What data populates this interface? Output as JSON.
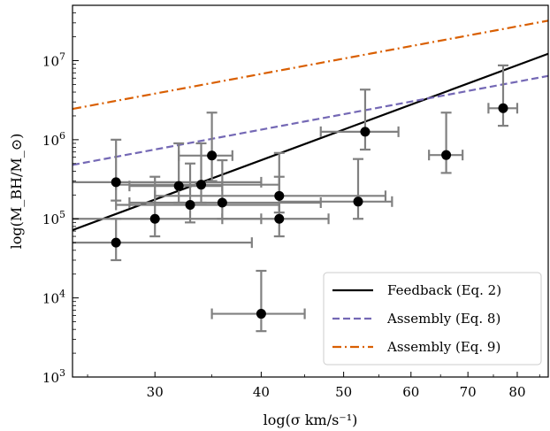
{
  "chart_data": {
    "type": "scatter",
    "xscale": "log",
    "yscale": "log",
    "xlim": [
      24,
      87
    ],
    "ylim": [
      1000,
      50000000
    ],
    "xlabel": "log(σ km/s⁻¹)",
    "ylabel": "log(M_BH/M_⊙)",
    "xticks": [
      {
        "value": 30,
        "label": "30"
      },
      {
        "value": 40,
        "label": "40"
      },
      {
        "value": 50,
        "label": "50"
      },
      {
        "value": 60,
        "label": "60"
      },
      {
        "value": 70,
        "label": "70"
      },
      {
        "value": 80,
        "label": "80"
      }
    ],
    "yticks": [
      {
        "value": 1000,
        "exp": "3"
      },
      {
        "value": 10000,
        "exp": "4"
      },
      {
        "value": 100000,
        "exp": "5"
      },
      {
        "value": 1000000,
        "exp": "6"
      },
      {
        "value": 10000000,
        "exp": "7"
      }
    ],
    "yticks_base": "10",
    "points": [
      {
        "x": 27,
        "y": 50000,
        "xlo": 22,
        "xhi": 39,
        "ylo": 30000,
        "yhi": 100000
      },
      {
        "x": 27,
        "y": 290000,
        "xlo": 22,
        "xhi": 40,
        "ylo": 170000,
        "yhi": 1000000
      },
      {
        "x": 30,
        "y": 100000,
        "xlo": 22,
        "xhi": 40,
        "ylo": 60000,
        "yhi": 340000
      },
      {
        "x": 32,
        "y": 260000,
        "xlo": 28,
        "xhi": 36,
        "ylo": 160000,
        "yhi": 900000
      },
      {
        "x": 33,
        "y": 150000,
        "xlo": 27,
        "xhi": 42,
        "ylo": 90000,
        "yhi": 500000
      },
      {
        "x": 34,
        "y": 270000,
        "xlo": 27,
        "xhi": 42,
        "ylo": 160000,
        "yhi": 900000
      },
      {
        "x": 35,
        "y": 630000,
        "xlo": 32,
        "xhi": 37,
        "ylo": 300000,
        "yhi": 2200000
      },
      {
        "x": 36,
        "y": 160000,
        "xlo": 28,
        "xhi": 47,
        "ylo": 100000,
        "yhi": 550000
      },
      {
        "x": 40,
        "y": 6300,
        "xlo": 35,
        "xhi": 45,
        "ylo": 3800,
        "yhi": 22000
      },
      {
        "x": 42,
        "y": 100000,
        "xlo": 36,
        "xhi": 48,
        "ylo": 60000,
        "yhi": 340000
      },
      {
        "x": 42,
        "y": 195000,
        "xlo": 30,
        "xhi": 56,
        "ylo": 120000,
        "yhi": 680000
      },
      {
        "x": 52,
        "y": 165000,
        "xlo": 42,
        "xhi": 57,
        "ylo": 100000,
        "yhi": 570000
      },
      {
        "x": 53,
        "y": 1260000,
        "xlo": 47,
        "xhi": 58,
        "ylo": 750000,
        "yhi": 4300000
      },
      {
        "x": 66,
        "y": 640000,
        "xlo": 63,
        "xhi": 69,
        "ylo": 380000,
        "yhi": 2200000
      },
      {
        "x": 77,
        "y": 2500000,
        "xlo": 74,
        "xhi": 80,
        "ylo": 1500000,
        "yhi": 8700000
      }
    ],
    "lines": [
      {
        "name": "Feedback (Eq. 2)",
        "color": "#000000",
        "dash": "solid",
        "x": [
          24,
          87
        ],
        "y": [
          72000,
          12200000
        ]
      },
      {
        "name": "Assembly (Eq. 8)",
        "color": "#7468b5",
        "dash": "dashed",
        "x": [
          24,
          87
        ],
        "y": [
          480000,
          6400000
        ]
      },
      {
        "name": "Assembly (Eq. 9)",
        "color": "#d95f02",
        "dash": "dashdot",
        "x": [
          24,
          87
        ],
        "y": [
          2450000,
          32000000
        ]
      }
    ],
    "legend_position": "lower-right",
    "grid": false,
    "marker_color": "#000000",
    "errorbar_color": "#808080"
  }
}
